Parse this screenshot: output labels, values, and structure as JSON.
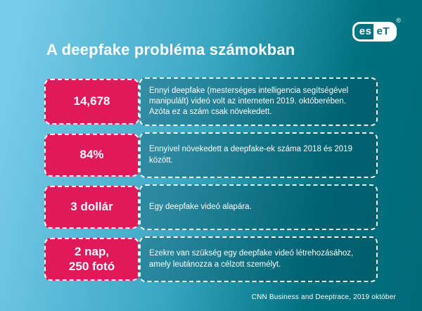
{
  "brand": {
    "logo_left": "es",
    "logo_right": "eT",
    "registered_mark": "®"
  },
  "title": "A deepfake probléma számokban",
  "rows": [
    {
      "stat": "14,678",
      "text": "Ennyi deepfake (mesterséges intelligencia segítségével manipulált) videó volt az interneten 2019. októberében. Azóta ez a szám csak növekedett."
    },
    {
      "stat": "84%",
      "text": "Ennyivel növekedett a deepfake-ek száma 2018 és 2019 között."
    },
    {
      "stat": "3 dollár",
      "text": "Egy deepfake videó alapára."
    },
    {
      "stat": "2 nap,\n250 fotó",
      "text": "Ezekre van szükség egy deepfake videó létrehozásához, amely leutánozza a célzott személyt."
    }
  ],
  "footer": "CNN Business and Deeptrace, 2019 október",
  "colors": {
    "background_light": "#76cbe9",
    "background_dark": "#006f7e",
    "accent_pink": "#e0195a",
    "text_white": "#ffffff"
  }
}
